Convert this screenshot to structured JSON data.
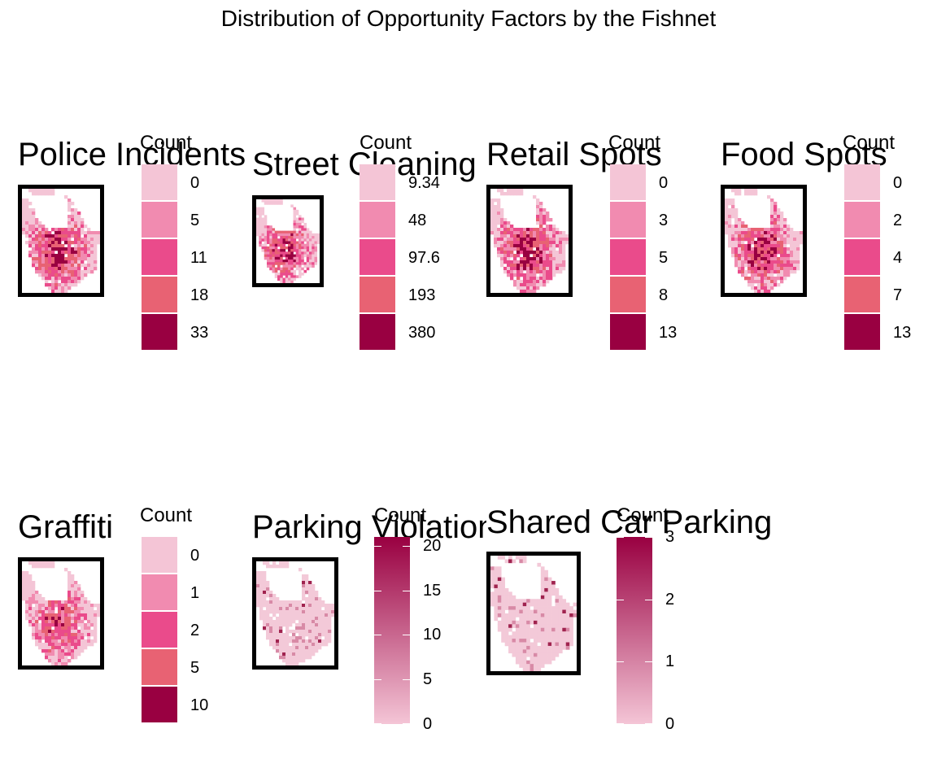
{
  "title": "Distribution of Opportunity Factors by the Fishnet",
  "palette": [
    "#f4c5d6",
    "#f18bb0",
    "#ea4b8b",
    "#e86273",
    "#990041"
  ],
  "chart_data": [
    {
      "type": "heatmap",
      "title": "Police Incidents",
      "legend_title": "Count",
      "legend_type": "discrete",
      "legend_breaks": [
        "0",
        "5",
        "11",
        "18",
        "33"
      ]
    },
    {
      "type": "heatmap",
      "title": "Street Cleaning",
      "legend_title": "Count",
      "legend_type": "discrete",
      "legend_breaks": [
        "9.34",
        "48",
        "97.6",
        "193",
        "380"
      ]
    },
    {
      "type": "heatmap",
      "title": "Retail Spots",
      "legend_title": "Count",
      "legend_type": "discrete",
      "legend_breaks": [
        "0",
        "3",
        "5",
        "8",
        "13"
      ]
    },
    {
      "type": "heatmap",
      "title": "Food Spots",
      "legend_title": "Count",
      "legend_type": "discrete",
      "legend_breaks": [
        "0",
        "2",
        "4",
        "7",
        "13"
      ]
    },
    {
      "type": "heatmap",
      "title": "Graffiti",
      "legend_title": "Count",
      "legend_type": "discrete",
      "legend_breaks": [
        "0",
        "1",
        "2",
        "5",
        "10"
      ]
    },
    {
      "type": "heatmap",
      "title": "Parking Violations",
      "legend_title": "Count",
      "legend_type": "continuous",
      "legend_ticks": [
        "0",
        "5",
        "10",
        "15",
        "20"
      ],
      "legend_range": [
        0,
        21
      ]
    },
    {
      "type": "heatmap",
      "title": "Shared Car Parking",
      "legend_title": "Count",
      "legend_type": "continuous",
      "legend_ticks": [
        "0",
        "1",
        "2",
        "3"
      ],
      "legend_range": [
        0,
        3
      ]
    }
  ]
}
